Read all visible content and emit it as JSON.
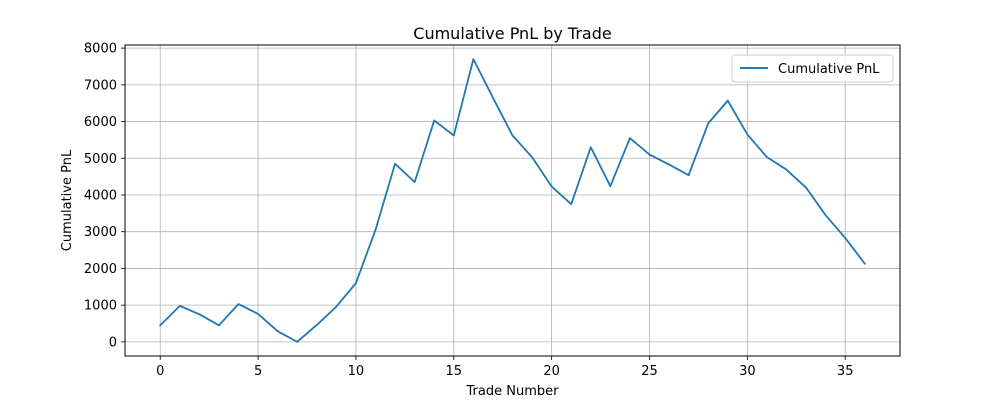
{
  "chart_data": {
    "type": "line",
    "title": "Cumulative PnL by Trade",
    "xlabel": "Trade Number",
    "ylabel": "Cumulative PnL",
    "xlim": [
      -1.8,
      37.8
    ],
    "ylim": [
      -385,
      8085
    ],
    "xticks": [
      0,
      5,
      10,
      15,
      20,
      25,
      30,
      35
    ],
    "yticks": [
      0,
      1000,
      2000,
      3000,
      4000,
      5000,
      6000,
      7000,
      8000
    ],
    "grid": true,
    "legend_position": "top-right",
    "series": [
      {
        "name": "Cumulative PnL",
        "color": "#1f77b4",
        "x": [
          0,
          1,
          2,
          3,
          4,
          5,
          6,
          7,
          8,
          9,
          10,
          11,
          12,
          13,
          14,
          15,
          16,
          17,
          18,
          19,
          20,
          21,
          22,
          23,
          24,
          25,
          26,
          27,
          28,
          29,
          30,
          31,
          32,
          33,
          34,
          35,
          36
        ],
        "y": [
          450,
          980,
          750,
          450,
          1030,
          760,
          290,
          0,
          460,
          960,
          1600,
          3050,
          4850,
          4350,
          6030,
          5620,
          7700,
          6650,
          5620,
          5030,
          4230,
          3750,
          5300,
          4240,
          5550,
          5100,
          4830,
          4540,
          5950,
          6570,
          5650,
          5030,
          4690,
          4200,
          3450,
          2830,
          2130
        ]
      }
    ]
  }
}
